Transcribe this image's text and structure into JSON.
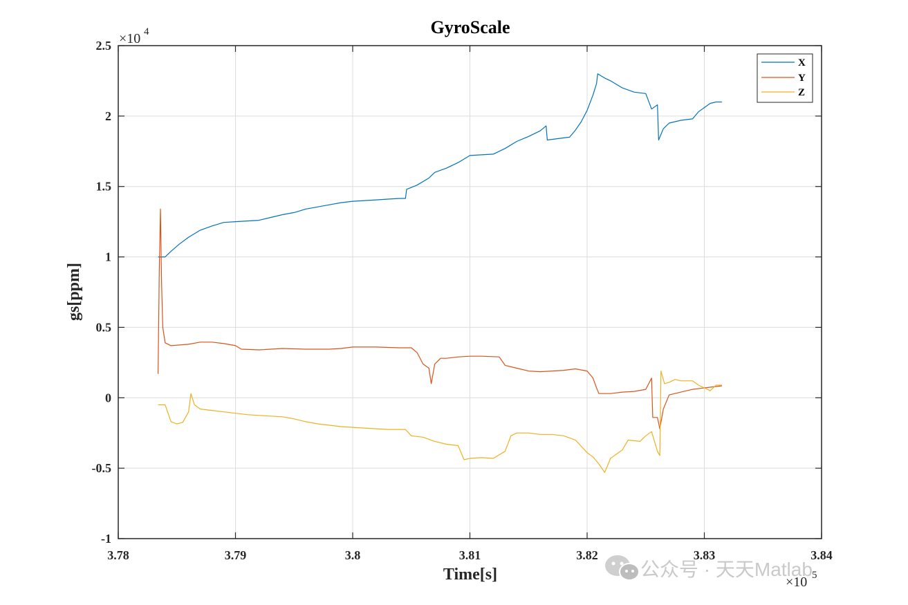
{
  "chart_data": {
    "type": "line",
    "title": "GyroScale",
    "xlabel": "Time[s]",
    "ylabel": "gs[ppm]",
    "x_exponent_label": "×10",
    "x_exponent_power": "5",
    "y_exponent_label": "×10",
    "y_exponent_power": "4",
    "xlim": [
      378000,
      384000
    ],
    "ylim": [
      -10000,
      25000
    ],
    "x_ticks": [
      378000,
      379000,
      380000,
      381000,
      382000,
      383000,
      384000
    ],
    "x_tick_labels": [
      "3.78",
      "3.79",
      "3.8",
      "3.81",
      "3.82",
      "3.83",
      "3.84"
    ],
    "y_ticks": [
      -10000,
      -5000,
      0,
      5000,
      10000,
      15000,
      20000,
      25000
    ],
    "y_tick_labels": [
      "-1",
      "-0.5",
      "0",
      "0.5",
      "1",
      "1.5",
      "2",
      "2.5"
    ],
    "grid": true,
    "legend_position": "top-right",
    "series": [
      {
        "name": "X",
        "color": "#0072BD",
        "points": [
          [
            378340,
            10000
          ],
          [
            378400,
            10000
          ],
          [
            378450,
            10400
          ],
          [
            378520,
            10900
          ],
          [
            378600,
            11400
          ],
          [
            378700,
            11900
          ],
          [
            378800,
            12200
          ],
          [
            378900,
            12450
          ],
          [
            379000,
            12500
          ],
          [
            379100,
            12550
          ],
          [
            379200,
            12600
          ],
          [
            379300,
            12800
          ],
          [
            379400,
            13000
          ],
          [
            379500,
            13150
          ],
          [
            379600,
            13400
          ],
          [
            379700,
            13550
          ],
          [
            379800,
            13700
          ],
          [
            379900,
            13850
          ],
          [
            380000,
            13950
          ],
          [
            380100,
            14000
          ],
          [
            380200,
            14050
          ],
          [
            380300,
            14100
          ],
          [
            380400,
            14150
          ],
          [
            380450,
            14150
          ],
          [
            380460,
            14800
          ],
          [
            380550,
            15100
          ],
          [
            380650,
            15600
          ],
          [
            380700,
            16000
          ],
          [
            380800,
            16300
          ],
          [
            380900,
            16700
          ],
          [
            381000,
            17200
          ],
          [
            381100,
            17250
          ],
          [
            381200,
            17300
          ],
          [
            381300,
            17700
          ],
          [
            381400,
            18200
          ],
          [
            381500,
            18550
          ],
          [
            381600,
            18950
          ],
          [
            381650,
            19300
          ],
          [
            381660,
            18300
          ],
          [
            381750,
            18400
          ],
          [
            381850,
            18500
          ],
          [
            381900,
            19000
          ],
          [
            381950,
            19600
          ],
          [
            382000,
            20400
          ],
          [
            382050,
            21500
          ],
          [
            382080,
            22300
          ],
          [
            382090,
            23000
          ],
          [
            382150,
            22700
          ],
          [
            382200,
            22500
          ],
          [
            382300,
            22000
          ],
          [
            382400,
            21700
          ],
          [
            382500,
            21600
          ],
          [
            382550,
            20500
          ],
          [
            382600,
            20800
          ],
          [
            382610,
            18300
          ],
          [
            382650,
            19100
          ],
          [
            382700,
            19500
          ],
          [
            382800,
            19700
          ],
          [
            382900,
            19800
          ],
          [
            382950,
            20300
          ],
          [
            383000,
            20600
          ],
          [
            383050,
            20900
          ],
          [
            383100,
            21000
          ],
          [
            383150,
            21000
          ]
        ]
      },
      {
        "name": "Y",
        "color": "#D95319",
        "points": [
          [
            378340,
            1700
          ],
          [
            378350,
            9000
          ],
          [
            378360,
            13400
          ],
          [
            378370,
            8000
          ],
          [
            378380,
            5000
          ],
          [
            378400,
            3900
          ],
          [
            378450,
            3700
          ],
          [
            378600,
            3800
          ],
          [
            378700,
            3950
          ],
          [
            378800,
            3950
          ],
          [
            378900,
            3850
          ],
          [
            379000,
            3700
          ],
          [
            379050,
            3450
          ],
          [
            379200,
            3400
          ],
          [
            379400,
            3500
          ],
          [
            379600,
            3450
          ],
          [
            379800,
            3450
          ],
          [
            379900,
            3500
          ],
          [
            380000,
            3600
          ],
          [
            380200,
            3600
          ],
          [
            380400,
            3550
          ],
          [
            380500,
            3550
          ],
          [
            380550,
            3200
          ],
          [
            380600,
            2400
          ],
          [
            380650,
            2100
          ],
          [
            380670,
            1000
          ],
          [
            380700,
            2400
          ],
          [
            380750,
            2800
          ],
          [
            380800,
            2800
          ],
          [
            380900,
            2900
          ],
          [
            381000,
            2950
          ],
          [
            381100,
            2950
          ],
          [
            381250,
            2900
          ],
          [
            381300,
            2300
          ],
          [
            381400,
            2100
          ],
          [
            381500,
            1900
          ],
          [
            381600,
            1850
          ],
          [
            381700,
            1900
          ],
          [
            381800,
            1950
          ],
          [
            381900,
            2050
          ],
          [
            382000,
            1900
          ],
          [
            382050,
            1400
          ],
          [
            382080,
            700
          ],
          [
            382100,
            300
          ],
          [
            382200,
            300
          ],
          [
            382300,
            400
          ],
          [
            382400,
            450
          ],
          [
            382500,
            600
          ],
          [
            382550,
            1400
          ],
          [
            382560,
            -1400
          ],
          [
            382600,
            -1400
          ],
          [
            382620,
            -2200
          ],
          [
            382650,
            -800
          ],
          [
            382700,
            200
          ],
          [
            382800,
            400
          ],
          [
            382900,
            600
          ],
          [
            383000,
            700
          ],
          [
            383100,
            800
          ],
          [
            383150,
            850
          ]
        ]
      },
      {
        "name": "Z",
        "color": "#EDB120",
        "points": [
          [
            378340,
            -500
          ],
          [
            378400,
            -500
          ],
          [
            378450,
            -1700
          ],
          [
            378500,
            -1850
          ],
          [
            378550,
            -1750
          ],
          [
            378600,
            -1000
          ],
          [
            378620,
            300
          ],
          [
            378650,
            -500
          ],
          [
            378700,
            -800
          ],
          [
            378800,
            -900
          ],
          [
            378900,
            -1000
          ],
          [
            379000,
            -1100
          ],
          [
            379100,
            -1200
          ],
          [
            379200,
            -1250
          ],
          [
            379300,
            -1300
          ],
          [
            379400,
            -1350
          ],
          [
            379500,
            -1500
          ],
          [
            379600,
            -1700
          ],
          [
            379700,
            -1850
          ],
          [
            379800,
            -1950
          ],
          [
            379900,
            -2050
          ],
          [
            380000,
            -2100
          ],
          [
            380100,
            -2150
          ],
          [
            380200,
            -2200
          ],
          [
            380300,
            -2250
          ],
          [
            380450,
            -2250
          ],
          [
            380500,
            -2700
          ],
          [
            380600,
            -2800
          ],
          [
            380700,
            -3100
          ],
          [
            380800,
            -3300
          ],
          [
            380900,
            -3400
          ],
          [
            380950,
            -4400
          ],
          [
            381000,
            -4300
          ],
          [
            381100,
            -4250
          ],
          [
            381200,
            -4300
          ],
          [
            381300,
            -3800
          ],
          [
            381350,
            -2700
          ],
          [
            381400,
            -2500
          ],
          [
            381500,
            -2500
          ],
          [
            381600,
            -2600
          ],
          [
            381700,
            -2600
          ],
          [
            381800,
            -2700
          ],
          [
            381900,
            -3000
          ],
          [
            382000,
            -3900
          ],
          [
            382050,
            -4200
          ],
          [
            382100,
            -4700
          ],
          [
            382150,
            -5300
          ],
          [
            382200,
            -4300
          ],
          [
            382300,
            -3700
          ],
          [
            382350,
            -3000
          ],
          [
            382450,
            -3100
          ],
          [
            382500,
            -2700
          ],
          [
            382550,
            -2400
          ],
          [
            382600,
            -3800
          ],
          [
            382620,
            -4100
          ],
          [
            382630,
            1900
          ],
          [
            382660,
            1000
          ],
          [
            382700,
            1100
          ],
          [
            382750,
            1300
          ],
          [
            382800,
            1200
          ],
          [
            382900,
            1200
          ],
          [
            382950,
            900
          ],
          [
            383000,
            700
          ],
          [
            383050,
            500
          ],
          [
            383100,
            900
          ],
          [
            383150,
            900
          ]
        ]
      }
    ]
  },
  "watermark": {
    "text": "公众号 · 天天Matlab",
    "icon": "wechat-icon"
  }
}
